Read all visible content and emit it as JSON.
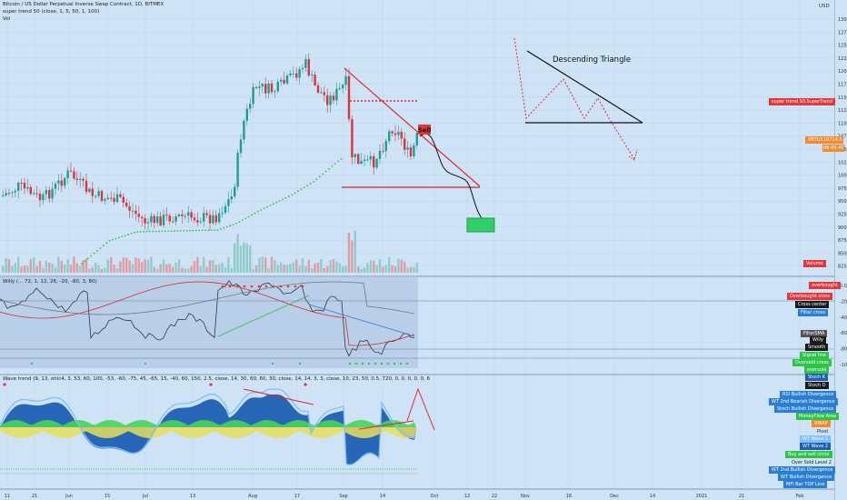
{
  "header": {
    "title": "Bitcoin / US Dollar Perpetual Inverse Swap Contract, 1D, BITMEX",
    "line2": "super trend 50 (close, 1, 5, 50, 1, 100)",
    "line3": "Vol"
  },
  "currency": "USD",
  "annotations": {
    "descending_triangle": "Descending Triangle",
    "sell": "Sell"
  },
  "price_axis": [
    "13000.00",
    "12750.00",
    "12500.00",
    "12250.00",
    "12000.00",
    "11750.00",
    "11500.00",
    "11250.00",
    "11000.00",
    "10750.00",
    "10500.00",
    "10250.00",
    "10000.00",
    "9750.00",
    "9500.00",
    "9250.00",
    "9000.00",
    "8750.00",
    "8500.00",
    "8250.00"
  ],
  "willy_axis": [
    "0.0",
    "-20.0",
    "-40.0",
    "-60.0",
    "-80.0",
    "-100.0"
  ],
  "willy_header": "Willy (... 72, 1, 12, 26, -20, -80, 3, 80)",
  "wt_header": "Wave trend (9, 13, ohlc4, 3, 53, 60, 100, -53, -60, -75, 45, -65, 15, -40, 60, 150, 2.5, close, 14, 30, 60, 60, 30, close, 14, 14, 3, 3, close, 10, 23, 50, 0.5, 720, 0, 0, 0, 0, 0, 60, 240, 0, 0, 240)",
  "time_axis": [
    "11",
    "21",
    "Jun",
    "15",
    "Jul",
    "13",
    "Aug",
    "17",
    "Sep",
    "14",
    "Oct",
    "12",
    "22",
    "Nov",
    "16",
    "Dec",
    "14",
    "2021",
    "21",
    "Feb"
  ],
  "tags": {
    "supertrend": "super trend 50.SuperTrend",
    "xbtusd": "XBTUSD",
    "price": "10714.5",
    "countdown": "06:49:45",
    "volume": "Volume",
    "overbought": "overbought",
    "overbought_cross": "Overbought cross",
    "cross_center": "Cross center",
    "filter_cross": "Filter cross",
    "filtersma": "FilterSMA",
    "willy": "Willy",
    "smooth": "Smooth",
    "signal_line": "Signal line",
    "oversold_cross": "Oversold cross",
    "oversold": "oversold",
    "stoch_k": "Stoch K",
    "stoch_d": "Stoch D",
    "rsi_bull_div": "RSI Bullish Divergence",
    "wt2_bear_div": "WT 2nd Bearish Divergence",
    "stoch_bull_div": "Stoch Bullish Divergence",
    "mfi_area": "MoneyFlow Area",
    "vwap": "VWAP",
    "pivot": "Pivot",
    "wt_wave1": "WT Wave 1",
    "wt_wave2": "WT Wave 2",
    "buy_sell_circle": "Buy and sell circle",
    "oversold_level2": "Over Sold Level 2",
    "wt2_bull_div": "WT 2nd Bullish Divergence",
    "wt_bull_div": "WT Bullish Divergence",
    "mfi_top_line": "MFI Bar TOP Line"
  },
  "colors": {
    "bull": "#1e9e8e",
    "bear": "#d8363a",
    "supertrend": "#2fc34a",
    "wt_blue": "#1f5fb3",
    "background": "#cfe3f7"
  }
}
